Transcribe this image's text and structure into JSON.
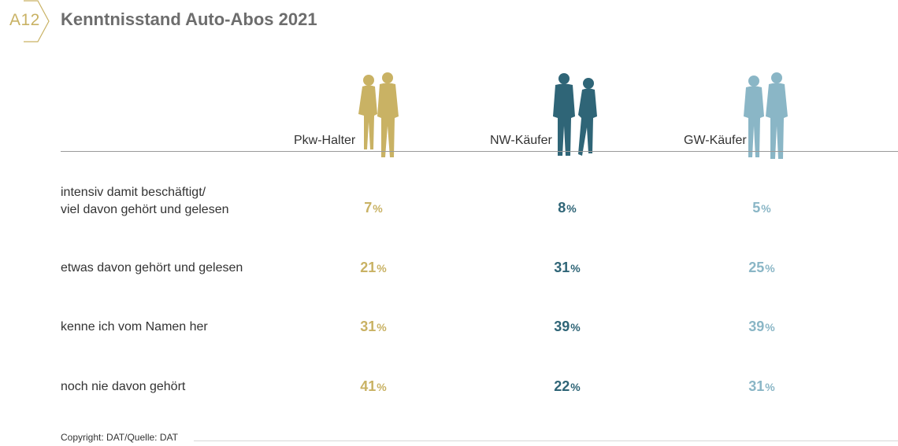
{
  "header": {
    "badge": "A12",
    "title": "Kenntnisstand Auto-Abos 2021"
  },
  "footer": {
    "copyright": "Copyright: DAT/Quelle: DAT"
  },
  "colors": {
    "pkw": "#c9b264",
    "nw": "#2f6577",
    "gw": "#8ab6c6"
  },
  "chart_data": {
    "type": "table",
    "title": "Kenntnisstand Auto-Abos 2021",
    "columns": [
      "Pkw-Halter",
      "NW-Käufer",
      "GW-Käufer"
    ],
    "rows": [
      {
        "label_lines": [
          "intensiv damit beschäftigt/",
          "viel davon gehört und gelesen"
        ],
        "values": [
          7,
          8,
          5
        ]
      },
      {
        "label_lines": [
          "etwas davon gehört und gelesen"
        ],
        "values": [
          21,
          31,
          25
        ]
      },
      {
        "label_lines": [
          "kenne ich vom Namen her"
        ],
        "values": [
          31,
          39,
          39
        ]
      },
      {
        "label_lines": [
          "noch nie davon gehört"
        ],
        "values": [
          41,
          22,
          31
        ]
      }
    ],
    "unit": "%"
  }
}
